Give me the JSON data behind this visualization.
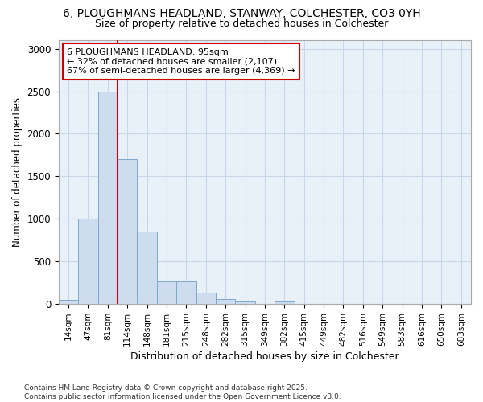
{
  "title_line1": "6, PLOUGHMANS HEADLAND, STANWAY, COLCHESTER, CO3 0YH",
  "title_line2": "Size of property relative to detached houses in Colchester",
  "xlabel": "Distribution of detached houses by size in Colchester",
  "ylabel": "Number of detached properties",
  "categories": [
    "14sqm",
    "47sqm",
    "81sqm",
    "114sqm",
    "148sqm",
    "181sqm",
    "215sqm",
    "248sqm",
    "282sqm",
    "315sqm",
    "349sqm",
    "382sqm",
    "415sqm",
    "449sqm",
    "482sqm",
    "516sqm",
    "549sqm",
    "583sqm",
    "616sqm",
    "650sqm",
    "683sqm"
  ],
  "values": [
    50,
    1000,
    2500,
    1700,
    850,
    270,
    270,
    130,
    60,
    30,
    0,
    30,
    0,
    0,
    0,
    0,
    0,
    0,
    0,
    0,
    0
  ],
  "bar_color": "#cddcee",
  "bar_edge_color": "#7fa8cc",
  "grid_color": "#c8d8e8",
  "vline_color": "#cc0000",
  "vline_pos": 2.5,
  "annotation_text": "6 PLOUGHMANS HEADLAND: 95sqm\n← 32% of detached houses are smaller (2,107)\n67% of semi-detached houses are larger (4,369) →",
  "annotation_box_color": "#ffffff",
  "annotation_box_edge": "#cc0000",
  "ylim": [
    0,
    3100
  ],
  "yticks": [
    0,
    500,
    1000,
    1500,
    2000,
    2500,
    3000
  ],
  "footnote": "Contains HM Land Registry data © Crown copyright and database right 2025.\nContains public sector information licensed under the Open Government Licence v3.0.",
  "bg_color": "#ffffff",
  "plot_bg_color": "#e8f0f8"
}
